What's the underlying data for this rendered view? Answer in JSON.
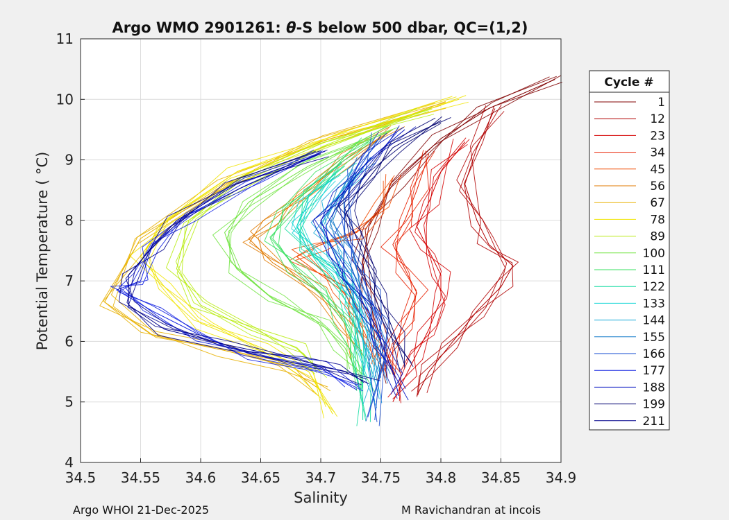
{
  "chart_data": {
    "type": "line",
    "title_prefix": "Argo WMO 2901261: ",
    "title_theta": "θ",
    "title_suffix": "-S below 500 dbar,  QC=(1,2)",
    "xlabel": "Salinity",
    "ylabel": "Potential Temperature ( °C)",
    "xlim": [
      34.5,
      34.9
    ],
    "ylim": [
      4,
      11
    ],
    "xticks": [
      "34.5",
      "34.55",
      "34.6",
      "34.65",
      "34.7",
      "34.75",
      "34.8",
      "34.85",
      "34.9"
    ],
    "yticks": [
      "4",
      "5",
      "6",
      "7",
      "8",
      "9",
      "10",
      "11"
    ],
    "grid": true,
    "legend": {
      "title": "Cycle #",
      "placement": "right-outside",
      "entries": [
        {
          "label": "1",
          "color": "#800000"
        },
        {
          "label": "12",
          "color": "#b00000"
        },
        {
          "label": "23",
          "color": "#d40000"
        },
        {
          "label": "34",
          "color": "#e82000"
        },
        {
          "label": "45",
          "color": "#f04a00"
        },
        {
          "label": "56",
          "color": "#e07a00"
        },
        {
          "label": "67",
          "color": "#e8b000"
        },
        {
          "label": "78",
          "color": "#f0e400"
        },
        {
          "label": "89",
          "color": "#b8ec10"
        },
        {
          "label": "100",
          "color": "#70e440"
        },
        {
          "label": "111",
          "color": "#38e060"
        },
        {
          "label": "122",
          "color": "#10dca0"
        },
        {
          "label": "133",
          "color": "#10d4d4"
        },
        {
          "label": "144",
          "color": "#10a8d8"
        },
        {
          "label": "155",
          "color": "#1078c8"
        },
        {
          "label": "166",
          "color": "#1048d0"
        },
        {
          "label": "177",
          "color": "#1020e0"
        },
        {
          "label": "188",
          "color": "#0010c0"
        },
        {
          "label": "199",
          "color": "#000070"
        },
        {
          "label": "211",
          "color": "#00008c"
        }
      ]
    },
    "series_note": "Representative theta-S profiles, one per sampled cycle group (values estimated from figure).",
    "series": [
      {
        "name": "1",
        "color": "#800000",
        "points": [
          [
            34.895,
            10.33
          ],
          [
            34.84,
            9.85
          ],
          [
            34.8,
            9.35
          ],
          [
            34.76,
            8.6
          ],
          [
            34.74,
            7.9
          ],
          [
            34.735,
            7.3
          ],
          [
            34.74,
            6.7
          ],
          [
            34.75,
            6.0
          ],
          [
            34.755,
            5.4
          ]
        ]
      },
      {
        "name": "12",
        "color": "#b00000",
        "points": [
          [
            34.845,
            9.85
          ],
          [
            34.83,
            9.2
          ],
          [
            34.82,
            8.6
          ],
          [
            34.83,
            8.0
          ],
          [
            34.84,
            7.6
          ],
          [
            34.86,
            7.25
          ],
          [
            34.85,
            6.9
          ],
          [
            34.83,
            6.5
          ],
          [
            34.81,
            6.0
          ],
          [
            34.79,
            5.5
          ],
          [
            34.78,
            5.1
          ]
        ]
      },
      {
        "name": "23",
        "color": "#d40000",
        "points": [
          [
            34.82,
            9.3
          ],
          [
            34.8,
            8.8
          ],
          [
            34.79,
            8.3
          ],
          [
            34.78,
            7.9
          ],
          [
            34.79,
            7.5
          ],
          [
            34.8,
            7.1
          ],
          [
            34.8,
            6.7
          ],
          [
            34.79,
            6.2
          ],
          [
            34.78,
            5.8
          ],
          [
            34.77,
            5.4
          ],
          [
            34.76,
            5.0
          ]
        ]
      },
      {
        "name": "34",
        "color": "#e82000",
        "points": [
          [
            34.79,
            9.1
          ],
          [
            34.78,
            8.5
          ],
          [
            34.77,
            8.0
          ],
          [
            34.76,
            7.6
          ],
          [
            34.77,
            7.2
          ],
          [
            34.78,
            6.8
          ],
          [
            34.77,
            6.3
          ],
          [
            34.76,
            5.9
          ],
          [
            34.76,
            5.5
          ]
        ]
      },
      {
        "name": "45",
        "color": "#f04a00",
        "points": [
          [
            34.76,
            8.7
          ],
          [
            34.75,
            8.2
          ],
          [
            34.73,
            7.8
          ],
          [
            34.7,
            7.6
          ],
          [
            34.68,
            7.4
          ],
          [
            34.7,
            7.1
          ],
          [
            34.72,
            6.8
          ],
          [
            34.73,
            6.4
          ],
          [
            34.74,
            6.0
          ],
          [
            34.745,
            5.6
          ]
        ]
      },
      {
        "name": "56",
        "color": "#e07a00",
        "points": [
          [
            34.76,
            9.5
          ],
          [
            34.72,
            9.0
          ],
          [
            34.69,
            8.5
          ],
          [
            34.66,
            8.0
          ],
          [
            34.64,
            7.7
          ],
          [
            34.66,
            7.3
          ],
          [
            34.7,
            6.8
          ],
          [
            34.72,
            6.3
          ],
          [
            34.73,
            5.8
          ]
        ]
      },
      {
        "name": "67",
        "color": "#e8b000",
        "points": [
          [
            34.8,
            9.9
          ],
          [
            34.7,
            9.3
          ],
          [
            34.62,
            8.6
          ],
          [
            34.55,
            7.7
          ],
          [
            34.52,
            6.65
          ],
          [
            34.56,
            6.1
          ],
          [
            34.62,
            5.85
          ],
          [
            34.67,
            5.6
          ],
          [
            34.7,
            5.2
          ]
        ]
      },
      {
        "name": "78",
        "color": "#f0e400",
        "points": [
          [
            34.815,
            10.0
          ],
          [
            34.72,
            9.4
          ],
          [
            34.63,
            8.8
          ],
          [
            34.57,
            8.0
          ],
          [
            34.55,
            7.4
          ],
          [
            34.57,
            6.9
          ],
          [
            34.6,
            6.3
          ],
          [
            34.65,
            5.9
          ],
          [
            34.69,
            5.5
          ],
          [
            34.71,
            4.8
          ]
        ]
      },
      {
        "name": "89",
        "color": "#b8ec10",
        "points": [
          [
            34.79,
            9.8
          ],
          [
            34.7,
            9.2
          ],
          [
            34.63,
            8.6
          ],
          [
            34.59,
            8.0
          ],
          [
            34.58,
            7.2
          ],
          [
            34.6,
            6.6
          ],
          [
            34.64,
            6.2
          ],
          [
            34.68,
            5.9
          ],
          [
            34.7,
            5.5
          ]
        ]
      },
      {
        "name": "100",
        "color": "#70e440",
        "points": [
          [
            34.76,
            9.5
          ],
          [
            34.69,
            8.9
          ],
          [
            34.64,
            8.3
          ],
          [
            34.62,
            7.8
          ],
          [
            34.63,
            7.2
          ],
          [
            34.66,
            6.7
          ],
          [
            34.7,
            6.3
          ],
          [
            34.72,
            5.9
          ],
          [
            34.73,
            5.5
          ]
        ]
      },
      {
        "name": "111",
        "color": "#38e060",
        "points": [
          [
            34.74,
            9.3
          ],
          [
            34.7,
            8.7
          ],
          [
            34.67,
            8.2
          ],
          [
            34.66,
            7.7
          ],
          [
            34.68,
            7.2
          ],
          [
            34.7,
            6.8
          ],
          [
            34.72,
            6.3
          ],
          [
            34.73,
            5.8
          ],
          [
            34.735,
            5.2
          ]
        ]
      },
      {
        "name": "122",
        "color": "#10dca0",
        "points": [
          [
            34.72,
            8.9
          ],
          [
            34.69,
            8.4
          ],
          [
            34.68,
            7.9
          ],
          [
            34.69,
            7.5
          ],
          [
            34.71,
            7.1
          ],
          [
            34.72,
            6.7
          ],
          [
            34.73,
            6.2
          ],
          [
            34.735,
            5.6
          ],
          [
            34.735,
            4.7
          ]
        ]
      },
      {
        "name": "133",
        "color": "#10d4d4",
        "points": [
          [
            34.71,
            8.7
          ],
          [
            34.69,
            8.3
          ],
          [
            34.68,
            7.9
          ],
          [
            34.7,
            7.4
          ],
          [
            34.72,
            7.0
          ],
          [
            34.73,
            6.5
          ],
          [
            34.735,
            6.0
          ],
          [
            34.74,
            5.5
          ]
        ]
      },
      {
        "name": "144",
        "color": "#10a8d8",
        "points": [
          [
            34.73,
            8.8
          ],
          [
            34.71,
            8.3
          ],
          [
            34.7,
            7.9
          ],
          [
            34.71,
            7.5
          ],
          [
            34.72,
            7.1
          ],
          [
            34.73,
            6.6
          ],
          [
            34.74,
            6.1
          ],
          [
            34.74,
            5.5
          ],
          [
            34.745,
            5.0
          ]
        ]
      },
      {
        "name": "155",
        "color": "#1078c8",
        "points": [
          [
            34.74,
            9.0
          ],
          [
            34.72,
            8.5
          ],
          [
            34.71,
            8.0
          ],
          [
            34.72,
            7.5
          ],
          [
            34.73,
            7.0
          ],
          [
            34.74,
            6.5
          ],
          [
            34.745,
            6.0
          ],
          [
            34.75,
            5.4
          ]
        ]
      },
      {
        "name": "166",
        "color": "#1048d0",
        "points": [
          [
            34.75,
            9.4
          ],
          [
            34.73,
            8.8
          ],
          [
            34.72,
            8.3
          ],
          [
            34.72,
            7.8
          ],
          [
            34.73,
            7.3
          ],
          [
            34.74,
            6.8
          ],
          [
            34.75,
            6.3
          ],
          [
            34.75,
            5.7
          ],
          [
            34.745,
            4.7
          ]
        ]
      },
      {
        "name": "177",
        "color": "#1020e0",
        "points": [
          [
            34.7,
            9.1
          ],
          [
            34.64,
            8.6
          ],
          [
            34.59,
            8.1
          ],
          [
            34.56,
            7.6
          ],
          [
            34.55,
            7.0
          ],
          [
            34.53,
            6.85
          ],
          [
            34.56,
            6.5
          ],
          [
            34.6,
            6.1
          ],
          [
            34.64,
            5.8
          ],
          [
            34.7,
            5.55
          ],
          [
            34.73,
            5.2
          ]
        ]
      },
      {
        "name": "188",
        "color": "#0010c0",
        "points": [
          [
            34.77,
            9.5
          ],
          [
            34.74,
            9.0
          ],
          [
            34.72,
            8.5
          ],
          [
            34.7,
            8.0
          ],
          [
            34.71,
            7.5
          ],
          [
            34.72,
            7.0
          ],
          [
            34.74,
            6.5
          ],
          [
            34.75,
            6.0
          ],
          [
            34.76,
            5.5
          ],
          [
            34.765,
            5.1
          ]
        ]
      },
      {
        "name": "199",
        "color": "#000070",
        "points": [
          [
            34.8,
            9.65
          ],
          [
            34.76,
            9.2
          ],
          [
            34.74,
            8.7
          ],
          [
            34.72,
            8.2
          ],
          [
            34.73,
            7.7
          ],
          [
            34.74,
            7.2
          ],
          [
            34.75,
            6.7
          ],
          [
            34.76,
            6.2
          ],
          [
            34.77,
            5.6
          ]
        ]
      },
      {
        "name": "211",
        "color": "#00008c",
        "points": [
          [
            34.7,
            9.1
          ],
          [
            34.63,
            8.6
          ],
          [
            34.58,
            8.0
          ],
          [
            34.56,
            7.56
          ],
          [
            34.54,
            7.1
          ],
          [
            34.54,
            6.6
          ],
          [
            34.57,
            6.2
          ],
          [
            34.62,
            5.95
          ],
          [
            34.68,
            5.7
          ],
          [
            34.72,
            5.5
          ],
          [
            34.74,
            5.3
          ]
        ]
      }
    ]
  },
  "footer": {
    "left": "Argo WHOI 21-Dec-2025",
    "right": "M Ravichandran at incois"
  }
}
